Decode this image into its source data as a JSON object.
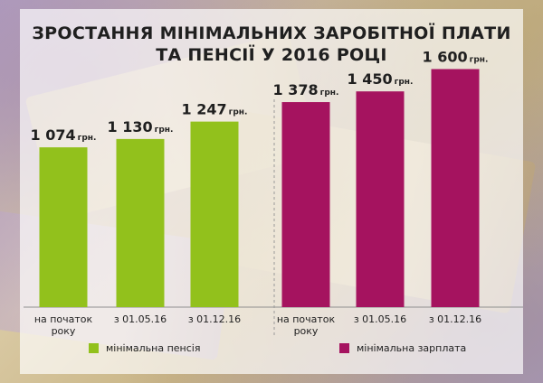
{
  "title_line1": "ЗРОСТАННЯ МІНІМАЛЬНИХ ЗАРОБІТНОЇ ПЛАТИ",
  "title_line2": "ТА ПЕНСІЇ У 2016 РОЦІ",
  "unit": "грн.",
  "colors": {
    "pension": "#92c11c",
    "salary": "#a5135f"
  },
  "chart_data": {
    "type": "bar",
    "ylim": [
      0,
      1700
    ],
    "grid": false,
    "legend_position": "bottom",
    "series": [
      {
        "name": "мінімальна пенсія",
        "categories": [
          "на початок року",
          "з 01.05.16",
          "з 01.12.16"
        ],
        "category_lines": [
          [
            "на початок",
            "року"
          ],
          [
            "з 01.05.16"
          ],
          [
            "з 01.12.16"
          ]
        ],
        "values": [
          1074,
          1130,
          1247
        ],
        "labels": [
          "1 074",
          "1 130",
          "1 247"
        ]
      },
      {
        "name": "мінімальна зарплата",
        "categories": [
          "на початок року",
          "з 01.05.16",
          "з 01.12.16"
        ],
        "category_lines": [
          [
            "на початок",
            "року"
          ],
          [
            "з 01.05.16"
          ],
          [
            "з 01.12.16"
          ]
        ],
        "values": [
          1378,
          1450,
          1600
        ],
        "labels": [
          "1 378",
          "1 450",
          "1 600"
        ]
      }
    ]
  }
}
